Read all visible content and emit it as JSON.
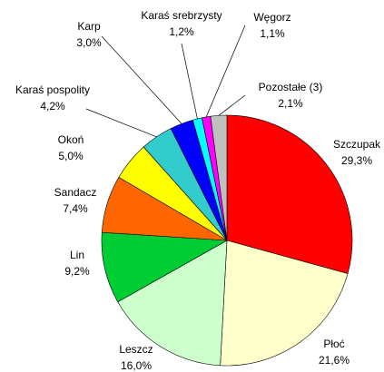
{
  "chart_data": {
    "type": "pie",
    "categories": [
      "Szczupak",
      "Płoć",
      "Leszcz",
      "Lin",
      "Sandacz",
      "Okoń",
      "Karaś pospolity",
      "Karp",
      "Karaś srebrzysty",
      "Węgorz",
      "Pozostałe (3)"
    ],
    "values": [
      29.3,
      21.6,
      16.0,
      9.2,
      7.4,
      5.0,
      4.2,
      3.0,
      1.2,
      1.1,
      2.1
    ],
    "value_labels": [
      "29,3%",
      "21,6%",
      "16,0%",
      "9,2%",
      "7,4%",
      "5,0%",
      "4,2%",
      "3,0%",
      "1,2%",
      "1,1%",
      "2,1%"
    ],
    "colors": [
      "#ff0000",
      "#ffffcc",
      "#ccffcc",
      "#00cc33",
      "#ff6600",
      "#ffff00",
      "#33cccc",
      "#0000ff",
      "#00ffff",
      "#ff00ff",
      "#c0c0c0"
    ]
  }
}
